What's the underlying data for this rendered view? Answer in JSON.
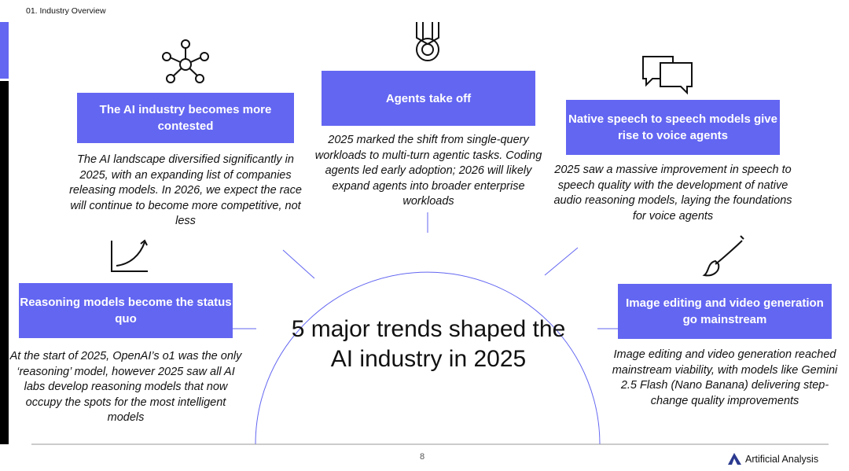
{
  "breadcrumb": "01. Industry Overview",
  "title": "5 major trends shaped the AI industry in 2025",
  "accent": "#6366f1",
  "trends": [
    {
      "icon": "network-icon",
      "heading": "The AI industry becomes more contested",
      "text": "The AI landscape diversified significantly in 2025, with an expanding list of companies releasing models. In 2026, we expect the race will continue to become more competitive, not less"
    },
    {
      "icon": "medal-icon",
      "heading": "Agents take off",
      "text": "2025 marked the shift from single-query workloads to multi-turn agentic tasks. Coding agents led early adoption; 2026 will likely expand agents into broader enterprise workloads"
    },
    {
      "icon": "speech-bubbles-icon",
      "heading": "Native speech to speech models give rise to voice agents",
      "text": "2025 saw a massive improvement in speech to speech quality with the development of native audio reasoning models, laying the foundations for voice agents"
    },
    {
      "icon": "growth-chart-icon",
      "heading": "Reasoning models become the status quo",
      "text": "At the start of 2025, OpenAI’s o1 was the only ‘reasoning’ model, however 2025 saw all AI labs develop reasoning models that now occupy the spots for the most intelligent models"
    },
    {
      "icon": "paintbrush-icon",
      "heading": "Image editing and video generation go mainstream",
      "text": "Image editing and video generation reached mainstream viability, with models like Gemini 2.5 Flash (Nano Banana) delivering step-change quality improvements"
    }
  ],
  "footer": {
    "page": "8",
    "brand": "Artificial Analysis"
  }
}
